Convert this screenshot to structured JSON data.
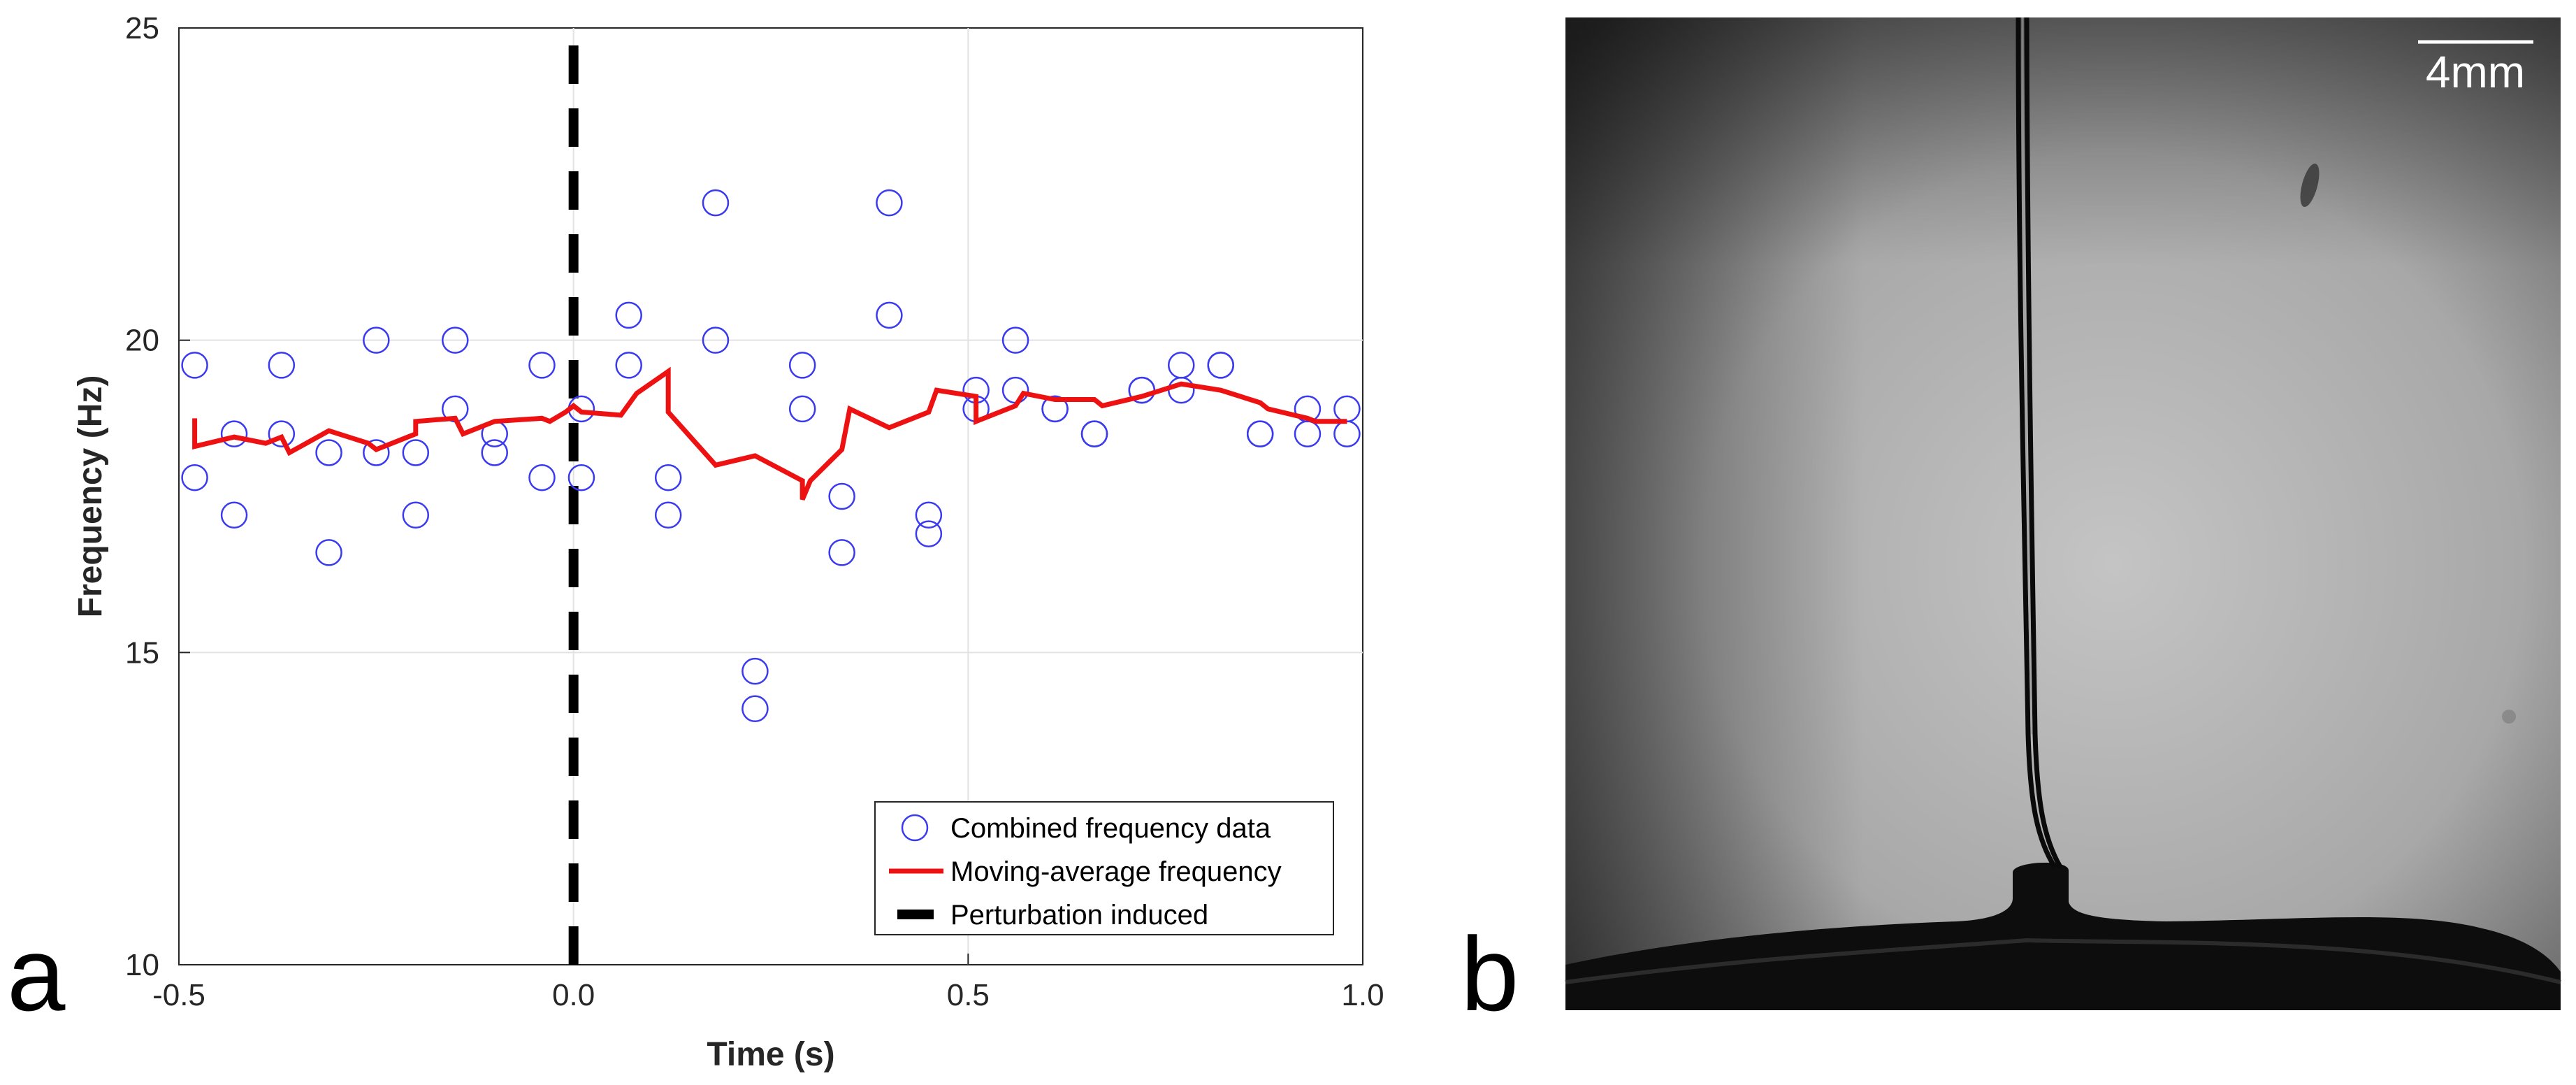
{
  "chart_data": {
    "type": "scatter",
    "xlabel": "Time (s)",
    "ylabel": "Frequency (Hz)",
    "xlim": [
      -0.5,
      1.0
    ],
    "ylim": [
      10,
      25
    ],
    "xticks": [
      -0.5,
      0.0,
      0.5,
      1.0
    ],
    "xtick_labels": [
      "-0.5",
      "0.0",
      "0.5",
      "1.0"
    ],
    "yticks": [
      10,
      15,
      20,
      25
    ],
    "ytick_labels": [
      "10",
      "15",
      "20",
      "25"
    ],
    "grid": true,
    "legend_position": "bottom-right",
    "perturbation_time": 0.0,
    "series": [
      {
        "name": "Combined frequency data",
        "type": "scatter",
        "marker": "open-circle",
        "color": "#3a3af0",
        "points": [
          [
            -0.48,
            19.6
          ],
          [
            -0.48,
            17.8
          ],
          [
            -0.43,
            18.5
          ],
          [
            -0.43,
            17.2
          ],
          [
            -0.37,
            19.6
          ],
          [
            -0.37,
            18.5
          ],
          [
            -0.31,
            18.2
          ],
          [
            -0.31,
            16.6
          ],
          [
            -0.25,
            20.0
          ],
          [
            -0.25,
            18.2
          ],
          [
            -0.2,
            18.2
          ],
          [
            -0.2,
            17.2
          ],
          [
            -0.15,
            20.0
          ],
          [
            -0.15,
            18.9
          ],
          [
            -0.1,
            18.5
          ],
          [
            -0.1,
            18.2
          ],
          [
            -0.04,
            19.6
          ],
          [
            -0.04,
            17.8
          ],
          [
            0.01,
            18.9
          ],
          [
            0.01,
            17.8
          ],
          [
            0.07,
            20.4
          ],
          [
            0.07,
            19.6
          ],
          [
            0.12,
            17.8
          ],
          [
            0.12,
            17.2
          ],
          [
            0.18,
            22.2
          ],
          [
            0.18,
            20.0
          ],
          [
            0.23,
            14.7
          ],
          [
            0.23,
            14.1
          ],
          [
            0.29,
            19.6
          ],
          [
            0.29,
            18.9
          ],
          [
            0.34,
            17.5
          ],
          [
            0.34,
            16.6
          ],
          [
            0.4,
            22.2
          ],
          [
            0.4,
            20.4
          ],
          [
            0.45,
            17.2
          ],
          [
            0.45,
            16.9
          ],
          [
            0.51,
            19.2
          ],
          [
            0.51,
            18.9
          ],
          [
            0.56,
            20.0
          ],
          [
            0.56,
            19.2
          ],
          [
            0.61,
            18.9
          ],
          [
            0.61,
            18.9
          ],
          [
            0.66,
            18.5
          ],
          [
            0.66,
            18.5
          ],
          [
            0.72,
            19.2
          ],
          [
            0.72,
            19.2
          ],
          [
            0.77,
            19.6
          ],
          [
            0.77,
            19.2
          ],
          [
            0.82,
            19.6
          ],
          [
            0.82,
            19.6
          ],
          [
            0.87,
            18.5
          ],
          [
            0.87,
            18.5
          ],
          [
            0.93,
            18.9
          ],
          [
            0.93,
            18.5
          ],
          [
            0.98,
            18.9
          ],
          [
            0.98,
            18.5
          ]
        ]
      },
      {
        "name": "Moving-average frequency",
        "type": "line",
        "color": "#ee1111",
        "points": [
          [
            -0.48,
            18.75
          ],
          [
            -0.48,
            18.3
          ],
          [
            -0.43,
            18.45
          ],
          [
            -0.39,
            18.35
          ],
          [
            -0.37,
            18.45
          ],
          [
            -0.36,
            18.2
          ],
          [
            -0.31,
            18.55
          ],
          [
            -0.26,
            18.35
          ],
          [
            -0.25,
            18.25
          ],
          [
            -0.2,
            18.5
          ],
          [
            -0.2,
            18.7
          ],
          [
            -0.15,
            18.75
          ],
          [
            -0.14,
            18.5
          ],
          [
            -0.1,
            18.7
          ],
          [
            -0.04,
            18.75
          ],
          [
            -0.03,
            18.7
          ],
          [
            -0.01,
            18.85
          ],
          [
            0.0,
            18.95
          ],
          [
            0.01,
            18.85
          ],
          [
            0.06,
            18.8
          ],
          [
            0.08,
            19.15
          ],
          [
            0.12,
            19.5
          ],
          [
            0.12,
            18.85
          ],
          [
            0.18,
            18.0
          ],
          [
            0.23,
            18.15
          ],
          [
            0.29,
            17.75
          ],
          [
            0.29,
            17.45
          ],
          [
            0.3,
            17.75
          ],
          [
            0.34,
            18.25
          ],
          [
            0.35,
            18.9
          ],
          [
            0.4,
            18.6
          ],
          [
            0.45,
            18.85
          ],
          [
            0.46,
            19.2
          ],
          [
            0.51,
            19.1
          ],
          [
            0.51,
            18.7
          ],
          [
            0.56,
            18.95
          ],
          [
            0.57,
            19.15
          ],
          [
            0.61,
            19.05
          ],
          [
            0.66,
            19.05
          ],
          [
            0.67,
            18.95
          ],
          [
            0.72,
            19.1
          ],
          [
            0.77,
            19.3
          ],
          [
            0.82,
            19.2
          ],
          [
            0.87,
            19.0
          ],
          [
            0.88,
            18.9
          ],
          [
            0.93,
            18.75
          ],
          [
            0.94,
            18.7
          ],
          [
            0.98,
            18.7
          ]
        ]
      },
      {
        "name": "Perturbation induced",
        "type": "vertical-dashed-line",
        "color": "#000000",
        "x": 0.0
      }
    ]
  },
  "panel_labels": {
    "left": "a",
    "right": "b"
  },
  "photo": {
    "scale_bar_label": "4mm",
    "description_label": ""
  }
}
